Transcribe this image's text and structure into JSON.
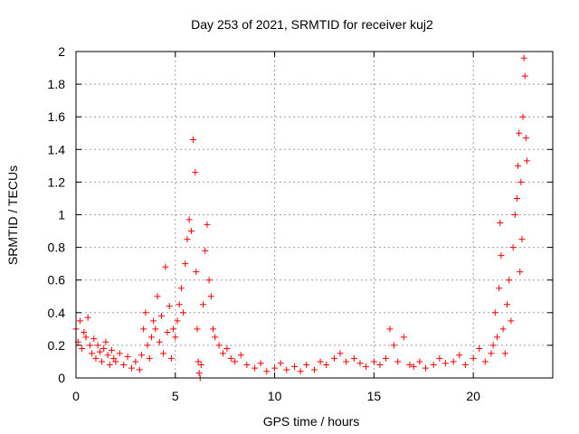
{
  "chart_data": {
    "type": "scatter",
    "title": "Day 253 of 2021, SRMTID for receiver kuj2",
    "xlabel": "GPS time / hours",
    "ylabel": "SRMTID / TECUs",
    "xlim": [
      0,
      24
    ],
    "ylim": [
      0,
      2
    ],
    "xticks": [
      0,
      5,
      10,
      15,
      20
    ],
    "xtick_labels": [
      "0",
      "5",
      "10",
      "15",
      "20"
    ],
    "yticks": [
      0,
      0.2,
      0.4,
      0.6,
      0.8,
      1,
      1.2,
      1.4,
      1.6,
      1.8,
      2
    ],
    "ytick_labels": [
      "0",
      "0.2",
      "0.4",
      "0.6",
      "0.8",
      "1",
      "1.2",
      "1.4",
      "1.6",
      "1.8",
      "2"
    ],
    "grid": true,
    "marker": "+",
    "series": [
      {
        "name": "kuj2",
        "color": "#ff0000",
        "points": [
          [
            0.0,
            0.3
          ],
          [
            0.1,
            0.22
          ],
          [
            0.2,
            0.35
          ],
          [
            0.3,
            0.18
          ],
          [
            0.4,
            0.28
          ],
          [
            0.5,
            0.25
          ],
          [
            0.6,
            0.37
          ],
          [
            0.7,
            0.2
          ],
          [
            0.8,
            0.15
          ],
          [
            0.9,
            0.24
          ],
          [
            1.0,
            0.12
          ],
          [
            1.1,
            0.2
          ],
          [
            1.2,
            0.16
          ],
          [
            1.3,
            0.1
          ],
          [
            1.4,
            0.18
          ],
          [
            1.5,
            0.22
          ],
          [
            1.6,
            0.14
          ],
          [
            1.7,
            0.08
          ],
          [
            1.8,
            0.17
          ],
          [
            1.9,
            0.12
          ],
          [
            2.0,
            0.1
          ],
          [
            2.2,
            0.15
          ],
          [
            2.4,
            0.08
          ],
          [
            2.6,
            0.13
          ],
          [
            2.8,
            0.06
          ],
          [
            3.0,
            0.1
          ],
          [
            3.2,
            0.05
          ],
          [
            3.3,
            0.14
          ],
          [
            3.4,
            0.3
          ],
          [
            3.5,
            0.4
          ],
          [
            3.6,
            0.2
          ],
          [
            3.7,
            0.12
          ],
          [
            3.8,
            0.25
          ],
          [
            3.9,
            0.35
          ],
          [
            4.0,
            0.3
          ],
          [
            4.1,
            0.5
          ],
          [
            4.2,
            0.22
          ],
          [
            4.3,
            0.38
          ],
          [
            4.4,
            0.15
          ],
          [
            4.5,
            0.68
          ],
          [
            4.6,
            0.28
          ],
          [
            4.7,
            0.44
          ],
          [
            4.8,
            0.12
          ],
          [
            4.9,
            0.3
          ],
          [
            5.0,
            0.25
          ],
          [
            5.1,
            0.35
          ],
          [
            5.2,
            0.45
          ],
          [
            5.3,
            0.55
          ],
          [
            5.4,
            0.4
          ],
          [
            5.5,
            0.7
          ],
          [
            5.6,
            0.85
          ],
          [
            5.7,
            0.97
          ],
          [
            5.8,
            0.9
          ],
          [
            5.9,
            1.46
          ],
          [
            6.0,
            1.26
          ],
          [
            6.05,
            0.65
          ],
          [
            6.1,
            0.3
          ],
          [
            6.15,
            0.1
          ],
          [
            6.2,
            0.03
          ],
          [
            6.25,
            0.0
          ],
          [
            6.3,
            0.08
          ],
          [
            6.4,
            0.45
          ],
          [
            6.5,
            0.78
          ],
          [
            6.6,
            0.94
          ],
          [
            6.7,
            0.6
          ],
          [
            6.8,
            0.5
          ],
          [
            6.9,
            0.3
          ],
          [
            7.0,
            0.25
          ],
          [
            7.2,
            0.2
          ],
          [
            7.4,
            0.15
          ],
          [
            7.6,
            0.18
          ],
          [
            7.8,
            0.12
          ],
          [
            8.0,
            0.1
          ],
          [
            8.3,
            0.14
          ],
          [
            8.6,
            0.08
          ],
          [
            9.0,
            0.06
          ],
          [
            9.3,
            0.09
          ],
          [
            9.6,
            0.04
          ],
          [
            10.0,
            0.06
          ],
          [
            10.3,
            0.09
          ],
          [
            10.6,
            0.05
          ],
          [
            11.0,
            0.07
          ],
          [
            11.3,
            0.04
          ],
          [
            11.6,
            0.08
          ],
          [
            12.0,
            0.05
          ],
          [
            12.3,
            0.1
          ],
          [
            12.6,
            0.08
          ],
          [
            13.0,
            0.12
          ],
          [
            13.3,
            0.15
          ],
          [
            13.6,
            0.1
          ],
          [
            14.0,
            0.12
          ],
          [
            14.3,
            0.09
          ],
          [
            14.6,
            0.07
          ],
          [
            15.0,
            0.1
          ],
          [
            15.3,
            0.08
          ],
          [
            15.6,
            0.12
          ],
          [
            15.8,
            0.3
          ],
          [
            16.0,
            0.2
          ],
          [
            16.2,
            0.1
          ],
          [
            16.5,
            0.25
          ],
          [
            16.8,
            0.08
          ],
          [
            17.0,
            0.07
          ],
          [
            17.3,
            0.1
          ],
          [
            17.6,
            0.06
          ],
          [
            18.0,
            0.08
          ],
          [
            18.3,
            0.12
          ],
          [
            18.6,
            0.09
          ],
          [
            19.0,
            0.1
          ],
          [
            19.3,
            0.14
          ],
          [
            19.6,
            0.08
          ],
          [
            20.0,
            0.12
          ],
          [
            20.3,
            0.18
          ],
          [
            20.6,
            0.1
          ],
          [
            20.9,
            0.15
          ],
          [
            21.0,
            0.2
          ],
          [
            21.1,
            0.4
          ],
          [
            21.2,
            0.25
          ],
          [
            21.3,
            0.55
          ],
          [
            21.35,
            0.95
          ],
          [
            21.4,
            0.75
          ],
          [
            21.5,
            0.3
          ],
          [
            21.6,
            0.15
          ],
          [
            21.7,
            0.45
          ],
          [
            21.8,
            0.6
          ],
          [
            21.9,
            0.35
          ],
          [
            22.0,
            0.8
          ],
          [
            22.1,
            1.0
          ],
          [
            22.2,
            1.1
          ],
          [
            22.25,
            1.3
          ],
          [
            22.3,
            1.5
          ],
          [
            22.35,
            0.65
          ],
          [
            22.4,
            1.2
          ],
          [
            22.45,
            0.85
          ],
          [
            22.5,
            1.6
          ],
          [
            22.55,
            1.96
          ],
          [
            22.6,
            1.85
          ],
          [
            22.65,
            1.47
          ],
          [
            22.7,
            1.33
          ]
        ]
      }
    ]
  }
}
